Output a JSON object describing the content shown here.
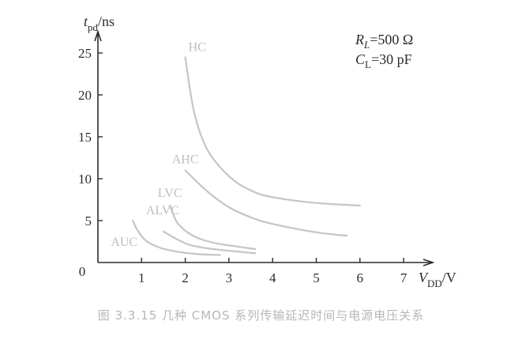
{
  "chart_data": {
    "type": "line",
    "y_axis": {
      "var": "t",
      "sub": "pd",
      "unit": "/ns",
      "ticks": [
        0,
        5,
        10,
        15,
        20,
        25
      ],
      "range": [
        0,
        27
      ]
    },
    "x_axis": {
      "var": "V",
      "sub": "DD",
      "unit": "/V",
      "ticks": [
        1,
        2,
        3,
        4,
        5,
        6,
        7
      ],
      "range": [
        0,
        7.4
      ]
    },
    "params": {
      "line1": {
        "var": "R",
        "sub": "L",
        "value": "=500 Ω"
      },
      "line2": {
        "var": "C",
        "sub": "L",
        "value": "=30 pF"
      }
    },
    "series": [
      {
        "name": "HC",
        "points": [
          [
            2.0,
            24.5
          ],
          [
            2.2,
            18.0
          ],
          [
            2.5,
            13.5
          ],
          [
            3.0,
            10.3
          ],
          [
            3.5,
            8.6
          ],
          [
            4.0,
            7.8
          ],
          [
            5.0,
            7.1
          ],
          [
            6.0,
            6.8
          ]
        ]
      },
      {
        "name": "AHC",
        "points": [
          [
            2.0,
            11.0
          ],
          [
            2.5,
            8.5
          ],
          [
            3.0,
            6.6
          ],
          [
            3.5,
            5.4
          ],
          [
            4.0,
            4.6
          ],
          [
            5.0,
            3.6
          ],
          [
            5.7,
            3.2
          ]
        ]
      },
      {
        "name": "LVC",
        "points": [
          [
            1.65,
            6.8
          ],
          [
            1.8,
            4.9
          ],
          [
            2.0,
            3.8
          ],
          [
            2.3,
            2.9
          ],
          [
            2.7,
            2.3
          ],
          [
            3.2,
            1.9
          ],
          [
            3.6,
            1.6
          ]
        ]
      },
      {
        "name": "ALVC",
        "points": [
          [
            1.5,
            3.7
          ],
          [
            1.8,
            2.8
          ],
          [
            2.1,
            2.1
          ],
          [
            2.5,
            1.7
          ],
          [
            3.0,
            1.4
          ],
          [
            3.6,
            1.1
          ]
        ]
      },
      {
        "name": "AUC",
        "points": [
          [
            0.8,
            5.0
          ],
          [
            0.9,
            3.9
          ],
          [
            1.1,
            2.6
          ],
          [
            1.4,
            1.8
          ],
          [
            1.8,
            1.3
          ],
          [
            2.3,
            1.0
          ],
          [
            2.8,
            0.9
          ]
        ]
      }
    ],
    "grid": false
  },
  "caption": "图 3.3.15   几种 CMOS 系列传输延迟时间与电源电压关系",
  "colors": {
    "axis": "#2b2b2b",
    "curve": "#c5c5c5",
    "curve_label": "#bdbdbd",
    "caption": "#b7b7b7"
  }
}
